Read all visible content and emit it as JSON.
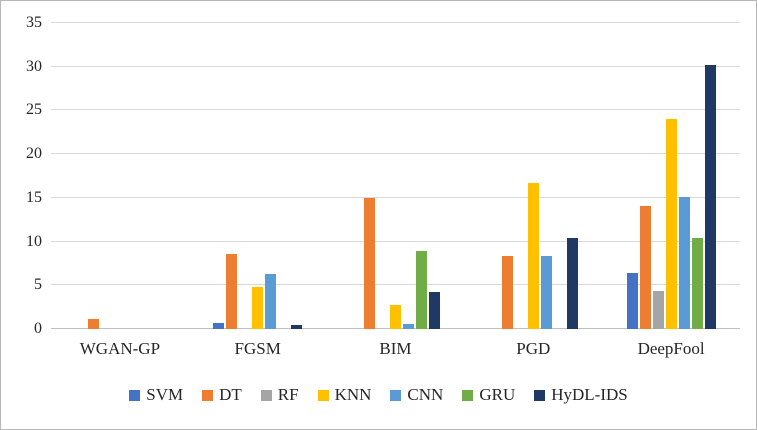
{
  "chart_data": {
    "type": "bar",
    "title": "",
    "xlabel": "",
    "ylabel": "",
    "categories": [
      "WGAN-GP",
      "FGSM",
      "BIM",
      "PGD",
      "DeepFool"
    ],
    "series": [
      {
        "name": "SVM",
        "color": "#4472c4",
        "values": [
          0,
          0.7,
          0,
          0,
          6.4
        ]
      },
      {
        "name": "DT",
        "color": "#ed7d31",
        "values": [
          1.2,
          8.6,
          15,
          8.4,
          14.1
        ]
      },
      {
        "name": "RF",
        "color": "#a5a5a5",
        "values": [
          0,
          0,
          0,
          0,
          4.4
        ]
      },
      {
        "name": "KNN",
        "color": "#ffc000",
        "values": [
          0,
          4.8,
          2.8,
          16.7,
          24
        ]
      },
      {
        "name": "CNN",
        "color": "#5b9bd5",
        "values": [
          0,
          6.3,
          0.6,
          8.4,
          15.1
        ]
      },
      {
        "name": "GRU",
        "color": "#70ad47",
        "values": [
          0,
          0,
          8.9,
          0,
          10.4
        ]
      },
      {
        "name": "HyDL-IDS",
        "color": "#203864",
        "values": [
          0,
          0.5,
          4.2,
          10.4,
          30.2
        ]
      }
    ],
    "ylim": [
      0,
      35
    ],
    "ytick_step": 5,
    "yticks": [
      0,
      5,
      10,
      15,
      20,
      25,
      30,
      35
    ],
    "grid": true,
    "legend_position": "bottom"
  }
}
